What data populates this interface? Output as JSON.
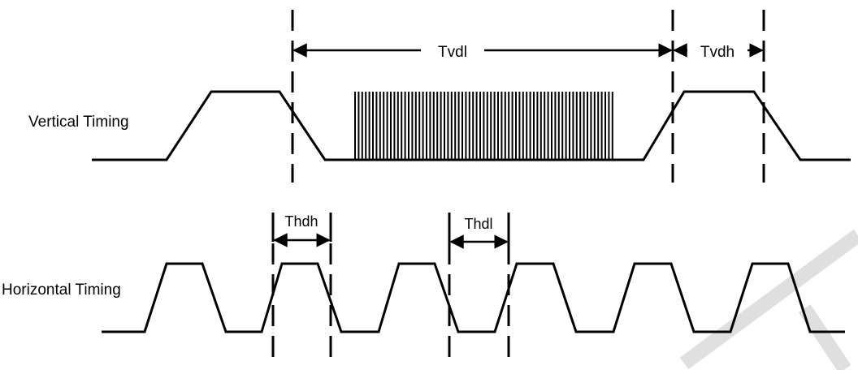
{
  "labels": {
    "vertical_timing": "Vertical Timing",
    "horizontal_timing": "Horizontal Timing"
  },
  "intervals": {
    "tvdl": "Tvdl",
    "tvdh": "Tvdh",
    "thdh": "Thdh",
    "thdl": "Thdl"
  },
  "colors": {
    "line": "#000000",
    "background": "#ffffff"
  }
}
